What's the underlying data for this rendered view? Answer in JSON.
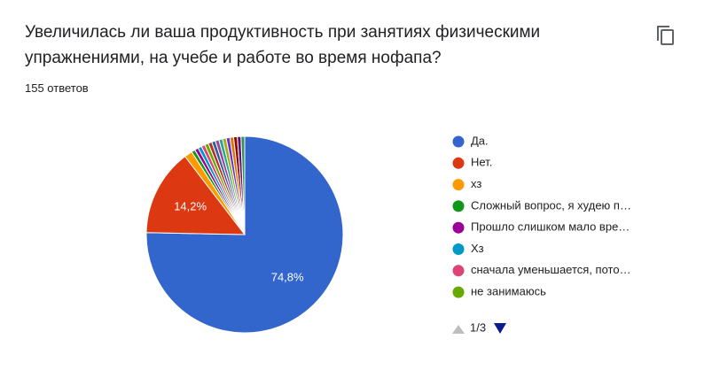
{
  "header": {
    "title": "Увеличилась ли ваша продуктивность при занятиях физическими упражнениями, на учебе и работе во время нофапа?",
    "subtitle": "155 ответов"
  },
  "chart_data": {
    "type": "pie",
    "categories": [
      "Да.",
      "Нет.",
      "хз",
      "Сложный вопрос, я худею п…",
      "Прошло слишком мало вре…",
      "Хз",
      "сначала уменьшается, пото…",
      "не занимаюсь",
      null,
      null,
      null,
      null,
      null,
      null,
      null,
      null,
      null,
      null
    ],
    "values": [
      74.8,
      14.2,
      1.3,
      0.6,
      0.6,
      0.6,
      0.6,
      0.6,
      0.6,
      0.6,
      0.6,
      0.6,
      0.6,
      0.6,
      0.6,
      0.6,
      0.6,
      0.6
    ],
    "value_labels": [
      "74,8%",
      "14,2%",
      null,
      null,
      null,
      null,
      null,
      null,
      null,
      null,
      null,
      null,
      null,
      null,
      null,
      null,
      null,
      null
    ],
    "colors": [
      "#3366cc",
      "#dc3912",
      "#ff9900",
      "#109618",
      "#990099",
      "#0099c6",
      "#dd4477",
      "#66aa00",
      "#b82e2e",
      "#316395",
      "#994499",
      "#22aa99",
      "#aaaa11",
      "#6633cc",
      "#e67300",
      "#8b0707",
      "#651067",
      "#329262"
    ],
    "legend_page": "1/3"
  }
}
